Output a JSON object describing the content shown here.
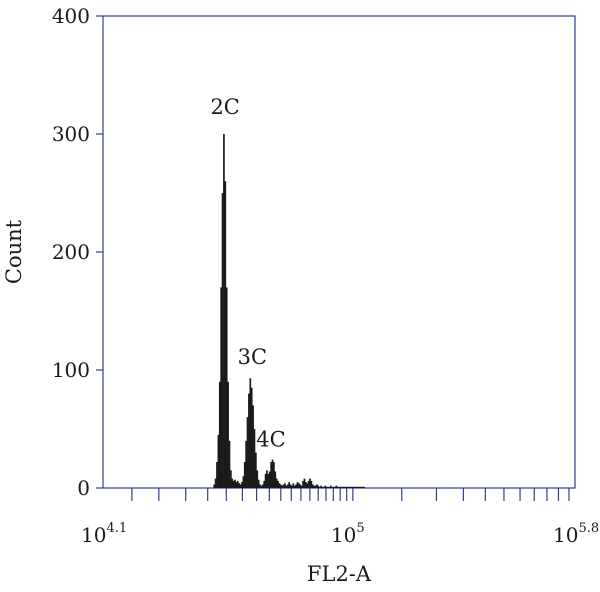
{
  "chart_data": {
    "type": "bar",
    "subtype": "histogram",
    "xlabel": "FL2-A",
    "ylabel": "Count",
    "xscale": "log10",
    "xlim": [
      4.1,
      5.8
    ],
    "ylim": [
      0,
      400
    ],
    "y_ticks": [
      "0",
      "100",
      "200",
      "300",
      "400"
    ],
    "x_tick_labels": [
      {
        "base": "10",
        "exp": "4.1",
        "log10": 4.1
      },
      {
        "base": "10",
        "exp": "5",
        "log10": 5.0
      },
      {
        "base": "10",
        "exp": "5.8",
        "log10": 5.8
      }
    ],
    "x_minor_ticks_log10": [
      4.2041,
      4.301,
      4.3979,
      4.4771,
      4.5441,
      4.6021,
      4.6532,
      4.699,
      4.7404,
      4.7782,
      4.8129,
      4.8451,
      4.8751,
      4.9031,
      4.9294,
      4.9542,
      4.9777,
      5.0,
      5.1761,
      5.301,
      5.3979,
      5.4771,
      5.5441,
      5.6021,
      5.6532,
      5.699,
      5.7404,
      5.7782
    ],
    "grid": false,
    "colors": {
      "bars": "#1a1a1a",
      "axes": "#2f3e8e",
      "text": "#1a1a1a"
    },
    "series": [
      {
        "x_log10": [
          4.5,
          4.505,
          4.51,
          4.515,
          4.52,
          4.525,
          4.53,
          4.535,
          4.54,
          4.545,
          4.55,
          4.555,
          4.56,
          4.565,
          4.57,
          4.575,
          4.58,
          4.585,
          4.59,
          4.595,
          4.6,
          4.605,
          4.61,
          4.615,
          4.62,
          4.625,
          4.63,
          4.635,
          4.64,
          4.645,
          4.65,
          4.655,
          4.66,
          4.665,
          4.67,
          4.675,
          4.68,
          4.685,
          4.69,
          4.695,
          4.7,
          4.705,
          4.71,
          4.715,
          4.72,
          4.725,
          4.73,
          4.735,
          4.74,
          4.745,
          4.75,
          4.755,
          4.76,
          4.765,
          4.77,
          4.775,
          4.78,
          4.785,
          4.79,
          4.795,
          4.8,
          4.805,
          4.81,
          4.815,
          4.82,
          4.825,
          4.83,
          4.835,
          4.84,
          4.845,
          4.85,
          4.855,
          4.86,
          4.865,
          4.87,
          4.875,
          4.88,
          4.885,
          4.89,
          4.895,
          4.9,
          4.905,
          4.91,
          4.915,
          4.92,
          4.925,
          4.93,
          4.935,
          4.94,
          4.945,
          4.95,
          4.955,
          4.96,
          4.965,
          4.97,
          4.975,
          4.98,
          4.985,
          4.99,
          4.995,
          5.0,
          5.005,
          5.01,
          5.015,
          5.02,
          5.025,
          5.03,
          5.035,
          5.04
        ],
        "values": [
          3,
          8,
          22,
          45,
          90,
          170,
          250,
          300,
          260,
          170,
          90,
          40,
          15,
          8,
          6,
          7,
          5,
          6,
          4,
          3,
          5,
          10,
          22,
          40,
          60,
          80,
          93,
          85,
          70,
          50,
          30,
          15,
          7,
          3,
          2,
          3,
          6,
          12,
          15,
          12,
          14,
          22,
          24,
          22,
          14,
          8,
          6,
          4,
          3,
          2,
          3,
          4,
          2,
          3,
          5,
          3,
          2,
          4,
          2,
          3,
          5,
          4,
          3,
          2,
          6,
          8,
          5,
          4,
          6,
          8,
          6,
          3,
          2,
          2,
          3,
          2,
          1,
          2,
          1,
          1,
          2,
          1,
          1,
          1,
          2,
          1,
          1,
          1,
          2,
          1,
          1,
          1,
          1,
          1,
          1,
          1,
          1,
          1,
          1,
          1,
          1,
          1,
          1,
          1,
          1,
          1,
          1,
          1,
          1
        ]
      }
    ],
    "annotations": [
      {
        "text": "2C",
        "x_log10": 4.54,
        "y": 312
      },
      {
        "text": "3C",
        "x_log10": 4.638,
        "y": 100
      },
      {
        "text": "4C",
        "x_log10": 4.705,
        "y": 30
      }
    ]
  }
}
